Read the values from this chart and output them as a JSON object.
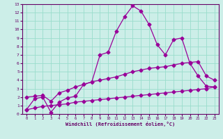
{
  "xlabel": "Windchill (Refroidissement éolien,°C)",
  "bg_color": "#cceee8",
  "grid_color": "#99ddcc",
  "line_color": "#990099",
  "spine_color": "#660066",
  "xlim": [
    -0.5,
    23.5
  ],
  "ylim": [
    0,
    13
  ],
  "xticks": [
    0,
    1,
    2,
    3,
    4,
    5,
    6,
    7,
    8,
    9,
    10,
    11,
    12,
    13,
    14,
    15,
    16,
    17,
    18,
    19,
    20,
    21,
    22,
    23
  ],
  "yticks": [
    0,
    1,
    2,
    3,
    4,
    5,
    6,
    7,
    8,
    9,
    10,
    11,
    12,
    13
  ],
  "line1_x": [
    0,
    1,
    2,
    3,
    4,
    5,
    6,
    7,
    8,
    9,
    10,
    11,
    12,
    13,
    14,
    15,
    16,
    17,
    18,
    19,
    20,
    21,
    22,
    23
  ],
  "line1_y": [
    0.5,
    1.8,
    2.0,
    0.2,
    1.4,
    1.9,
    2.1,
    3.5,
    3.8,
    7.0,
    7.3,
    9.8,
    11.5,
    12.8,
    12.2,
    10.6,
    8.2,
    7.0,
    8.8,
    9.0,
    6.0,
    4.5,
    3.3,
    3.2
  ],
  "line2_x": [
    0,
    1,
    2,
    3,
    4,
    5,
    6,
    7,
    8,
    9,
    10,
    11,
    12,
    13,
    14,
    15,
    16,
    17,
    18,
    19,
    20,
    21,
    22,
    23
  ],
  "line2_y": [
    2.0,
    2.1,
    2.2,
    1.5,
    2.5,
    2.8,
    3.2,
    3.5,
    3.8,
    4.0,
    4.2,
    4.4,
    4.7,
    5.0,
    5.2,
    5.4,
    5.5,
    5.6,
    5.8,
    6.0,
    6.1,
    6.2,
    4.5,
    4.0
  ],
  "line3_x": [
    0,
    1,
    2,
    3,
    4,
    5,
    6,
    7,
    8,
    9,
    10,
    11,
    12,
    13,
    14,
    15,
    16,
    17,
    18,
    19,
    20,
    21,
    22,
    23
  ],
  "line3_y": [
    0.5,
    0.7,
    0.9,
    1.0,
    1.1,
    1.2,
    1.4,
    1.5,
    1.6,
    1.7,
    1.8,
    1.9,
    2.0,
    2.1,
    2.2,
    2.3,
    2.4,
    2.5,
    2.6,
    2.7,
    2.8,
    2.9,
    3.0,
    3.2
  ]
}
